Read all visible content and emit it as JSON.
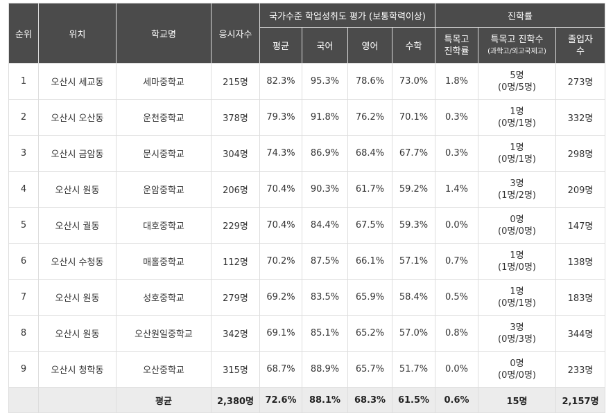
{
  "headers": {
    "rank": "순위",
    "location": "위치",
    "school": "학교명",
    "examinees": "응시자수",
    "achievement_group": "국가수준 학업성취도 평가 (보통학력이상)",
    "avg": "평균",
    "korean": "국어",
    "english": "영어",
    "math": "수학",
    "advancement_group": "진학률",
    "special_rate_l1": "특목고",
    "special_rate_l2": "진학률",
    "special_count_l1": "특목고 진학수",
    "special_count_l2": "(과학고/외고국제고)",
    "graduates_l1": "졸업자",
    "graduates_l2": "수"
  },
  "rows": [
    {
      "rank": "1",
      "location": "오산시 세교동",
      "school": "세마중학교",
      "examinees": "215명",
      "avg": "82.3%",
      "korean": "95.3%",
      "english": "78.6%",
      "math": "73.0%",
      "special_rate": "1.8%",
      "special_count": "5명",
      "special_detail": "(0명/5명)",
      "graduates": "273명"
    },
    {
      "rank": "2",
      "location": "오산시 오산동",
      "school": "운천중학교",
      "examinees": "378명",
      "avg": "79.3%",
      "korean": "91.8%",
      "english": "76.2%",
      "math": "70.1%",
      "special_rate": "0.3%",
      "special_count": "1명",
      "special_detail": "(0명/1명)",
      "graduates": "332명"
    },
    {
      "rank": "3",
      "location": "오산시 금암동",
      "school": "문시중학교",
      "examinees": "304명",
      "avg": "74.3%",
      "korean": "86.9%",
      "english": "68.4%",
      "math": "67.7%",
      "special_rate": "0.3%",
      "special_count": "1명",
      "special_detail": "(0명/1명)",
      "graduates": "298명"
    },
    {
      "rank": "4",
      "location": "오산시 원동",
      "school": "운암중학교",
      "examinees": "206명",
      "avg": "70.4%",
      "korean": "90.3%",
      "english": "61.7%",
      "math": "59.2%",
      "special_rate": "1.4%",
      "special_count": "3명",
      "special_detail": "(1명/2명)",
      "graduates": "209명"
    },
    {
      "rank": "5",
      "location": "오산시 궐동",
      "school": "대호중학교",
      "examinees": "229명",
      "avg": "70.4%",
      "korean": "84.4%",
      "english": "67.5%",
      "math": "59.3%",
      "special_rate": "0.0%",
      "special_count": "0명",
      "special_detail": "(0명/0명)",
      "graduates": "147명"
    },
    {
      "rank": "6",
      "location": "오산시 수청동",
      "school": "매홀중학교",
      "examinees": "112명",
      "avg": "70.2%",
      "korean": "87.5%",
      "english": "66.1%",
      "math": "57.1%",
      "special_rate": "0.7%",
      "special_count": "1명",
      "special_detail": "(1명/0명)",
      "graduates": "138명"
    },
    {
      "rank": "7",
      "location": "오산시 원동",
      "school": "성호중학교",
      "examinees": "279명",
      "avg": "69.2%",
      "korean": "83.5%",
      "english": "65.9%",
      "math": "58.4%",
      "special_rate": "0.5%",
      "special_count": "1명",
      "special_detail": "(0명/1명)",
      "graduates": "183명"
    },
    {
      "rank": "8",
      "location": "오산시 원동",
      "school": "오산원일중학교",
      "examinees": "342명",
      "avg": "69.1%",
      "korean": "85.1%",
      "english": "65.2%",
      "math": "57.0%",
      "special_rate": "0.8%",
      "special_count": "3명",
      "special_detail": "(0명/3명)",
      "graduates": "344명"
    },
    {
      "rank": "9",
      "location": "오산시 청학동",
      "school": "오산중학교",
      "examinees": "315명",
      "avg": "68.7%",
      "korean": "88.9%",
      "english": "65.7%",
      "math": "51.7%",
      "special_rate": "0.0%",
      "special_count": "0명",
      "special_detail": "(0명/0명)",
      "graduates": "233명"
    }
  ],
  "average": {
    "label": "평균",
    "examinees": "2,380명",
    "avg": "72.6%",
    "korean": "88.1%",
    "english": "68.3%",
    "math": "61.5%",
    "special_rate": "0.6%",
    "special_count": "15명",
    "graduates": "2,157명"
  }
}
